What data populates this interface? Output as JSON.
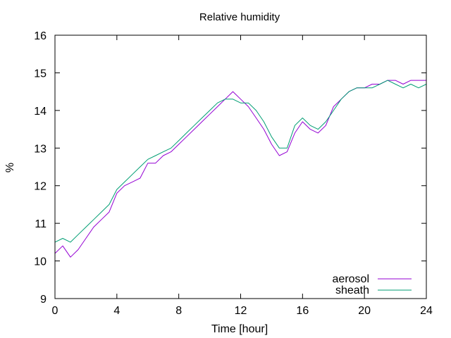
{
  "chart_data": {
    "type": "line",
    "title": "Relative humidity",
    "xlabel": "Time [hour]",
    "ylabel": "%",
    "xlim": [
      0,
      24
    ],
    "ylim": [
      9,
      16
    ],
    "xticks": [
      0,
      4,
      8,
      12,
      16,
      20,
      24
    ],
    "yticks": [
      9,
      10,
      11,
      12,
      13,
      14,
      15,
      16
    ],
    "xtick_labels": [
      "0",
      "4",
      "8",
      "12",
      "16",
      "20",
      "24"
    ],
    "ytick_labels": [
      "9",
      "10",
      "11",
      "12",
      "13",
      "14",
      "15",
      "16"
    ],
    "legend_position": "bottom-right",
    "grid": false,
    "series": [
      {
        "name": "aerosol",
        "color": "#9400d3",
        "x": [
          0,
          0.5,
          1,
          1.5,
          2,
          2.5,
          3,
          3.5,
          4,
          4.5,
          5,
          5.5,
          6,
          6.5,
          7,
          7.5,
          8,
          8.5,
          9,
          9.5,
          10,
          10.5,
          11,
          11.5,
          12,
          12.5,
          13,
          13.5,
          14,
          14.5,
          15,
          15.5,
          16,
          16.5,
          17,
          17.5,
          18,
          18.5,
          19,
          19.5,
          20,
          20.5,
          21,
          21.5,
          22,
          22.5,
          23,
          23.5,
          24
        ],
        "y": [
          10.2,
          10.4,
          10.1,
          10.3,
          10.6,
          10.9,
          11.1,
          11.3,
          11.8,
          12.0,
          12.1,
          12.2,
          12.6,
          12.6,
          12.8,
          12.9,
          13.1,
          13.3,
          13.5,
          13.7,
          13.9,
          14.1,
          14.3,
          14.5,
          14.3,
          14.1,
          13.8,
          13.5,
          13.1,
          12.8,
          12.9,
          13.4,
          13.7,
          13.5,
          13.4,
          13.6,
          14.1,
          14.3,
          14.5,
          14.6,
          14.6,
          14.7,
          14.7,
          14.8,
          14.8,
          14.7,
          14.8,
          14.8,
          14.8
        ]
      },
      {
        "name": "sheath",
        "color": "#009e73",
        "x": [
          0,
          0.5,
          1,
          1.5,
          2,
          2.5,
          3,
          3.5,
          4,
          4.5,
          5,
          5.5,
          6,
          6.5,
          7,
          7.5,
          8,
          8.5,
          9,
          9.5,
          10,
          10.5,
          11,
          11.5,
          12,
          12.5,
          13,
          13.5,
          14,
          14.5,
          15,
          15.5,
          16,
          16.5,
          17,
          17.5,
          18,
          18.5,
          19,
          19.5,
          20,
          20.5,
          21,
          21.5,
          22,
          22.5,
          23,
          23.5,
          24
        ],
        "y": [
          10.5,
          10.6,
          10.5,
          10.7,
          10.9,
          11.1,
          11.3,
          11.5,
          11.9,
          12.1,
          12.3,
          12.5,
          12.7,
          12.8,
          12.9,
          13.0,
          13.2,
          13.4,
          13.6,
          13.8,
          14.0,
          14.2,
          14.3,
          14.3,
          14.2,
          14.2,
          14.0,
          13.7,
          13.3,
          13.0,
          13.0,
          13.6,
          13.8,
          13.6,
          13.5,
          13.7,
          14.0,
          14.3,
          14.5,
          14.6,
          14.6,
          14.6,
          14.7,
          14.8,
          14.7,
          14.6,
          14.7,
          14.6,
          14.7
        ]
      }
    ]
  }
}
